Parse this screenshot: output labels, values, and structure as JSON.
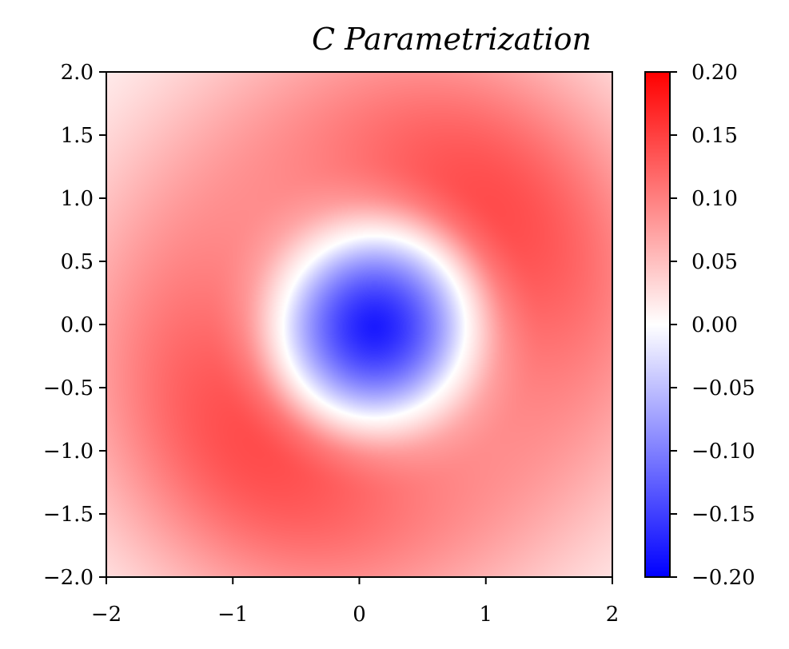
{
  "chart_data": {
    "type": "heatmap",
    "title": "C  Parametrization",
    "xlabel": "",
    "ylabel": "",
    "xlim": [
      -2,
      2
    ],
    "ylim": [
      -2,
      2
    ],
    "x_ticks": [
      -2,
      -1,
      0,
      1,
      2
    ],
    "x_tick_labels": [
      "−2",
      "−1",
      "0",
      "1",
      "2"
    ],
    "y_ticks": [
      2.0,
      1.5,
      1.0,
      0.5,
      0.0,
      -0.5,
      -1.0,
      -1.5,
      -2.0
    ],
    "y_tick_labels": [
      "2.0",
      "1.5",
      "1.0",
      "0.5",
      "0.0",
      "−0.5",
      "−1.0",
      "−1.5",
      "−2.0"
    ],
    "colorbar": {
      "colormap": "bwr",
      "vmin": -0.2,
      "vmax": 0.2,
      "ticks": [
        0.2,
        0.15,
        0.1,
        0.05,
        0.0,
        -0.05,
        -0.1,
        -0.15,
        -0.2
      ],
      "tick_labels": [
        "0.20",
        "0.15",
        "0.10",
        "0.05",
        "0.00",
        "−0.05",
        "−0.10",
        "−0.15",
        "−0.20"
      ],
      "colors": {
        "low": "#0000ff",
        "mid": "#ffffff",
        "high": "#ff0000"
      }
    },
    "field": {
      "description_of_shape": "ring",
      "minimum": {
        "x": 0.12,
        "y": -0.02,
        "value": -0.18
      },
      "zero_contour_radius": 0.72,
      "ring_peak_radius": 1.35,
      "ring_peak_value": 0.115,
      "edge_value": 0.02,
      "ring_strong_directions": [
        "upper-right",
        "lower-left"
      ]
    },
    "grid": false
  }
}
